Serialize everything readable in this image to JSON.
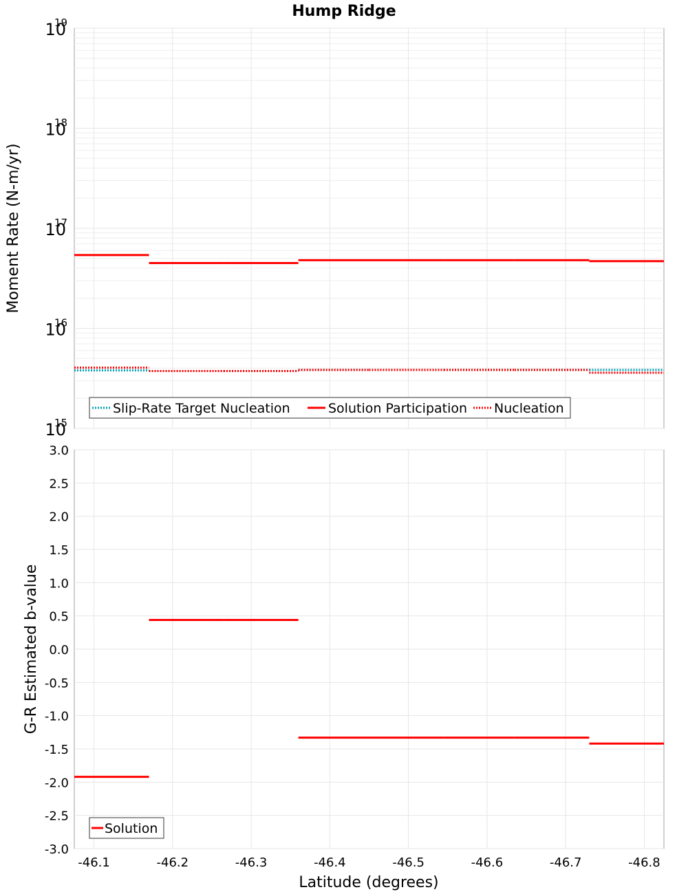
{
  "chart_data": {
    "title": "Hump Ridge",
    "x_axis": {
      "label": "Latitude (degrees)",
      "range": [
        -46.075,
        -46.825
      ],
      "ticks": [
        -46.1,
        -46.2,
        -46.3,
        -46.4,
        -46.5,
        -46.6,
        -46.7,
        -46.8
      ],
      "tick_labels": [
        "-46.1",
        "-46.2",
        "-46.3",
        "-46.4",
        "-46.5",
        "-46.6",
        "-46.7",
        "-46.8"
      ]
    },
    "panels": [
      {
        "type": "line",
        "scale": "log",
        "ylabel": "Moment Rate (N-m/yr)",
        "ylim": [
          1000000000000000.0,
          1e+19
        ],
        "y_ticks": [
          {
            "value": 1000000000000000.0,
            "base": "10",
            "exp": "15"
          },
          {
            "value": 1e+16,
            "base": "10",
            "exp": "16"
          },
          {
            "value": 1e+17,
            "base": "10",
            "exp": "17"
          },
          {
            "value": 1e+18,
            "base": "10",
            "exp": "18"
          },
          {
            "value": 1e+19,
            "base": "10",
            "exp": "19"
          }
        ],
        "legend_position": "bottom-left",
        "series": [
          {
            "name": "Slip-Rate Target Nucleation",
            "color": "#00a0b4",
            "style": "dotted",
            "segments": [
              {
                "x0": -46.075,
                "x1": -46.17,
                "y": 3800000000000000.0
              },
              {
                "x0": -46.17,
                "x1": -46.265,
                "y": 3750000000000000.0
              },
              {
                "x0": -46.265,
                "x1": -46.36,
                "y": 3750000000000000.0
              },
              {
                "x0": -46.36,
                "x1": -46.45,
                "y": 3850000000000000.0
              },
              {
                "x0": -46.45,
                "x1": -46.545,
                "y": 3850000000000000.0
              },
              {
                "x0": -46.545,
                "x1": -46.635,
                "y": 3850000000000000.0
              },
              {
                "x0": -46.635,
                "x1": -46.73,
                "y": 3850000000000000.0
              },
              {
                "x0": -46.73,
                "x1": -46.825,
                "y": 3850000000000000.0
              }
            ]
          },
          {
            "name": "Solution Participation",
            "color": "#ff0000",
            "style": "solid",
            "segments": [
              {
                "x0": -46.075,
                "x1": -46.17,
                "y": 5.4e+16
              },
              {
                "x0": -46.17,
                "x1": -46.265,
                "y": 4.5e+16
              },
              {
                "x0": -46.265,
                "x1": -46.36,
                "y": 4.5e+16
              },
              {
                "x0": -46.36,
                "x1": -46.45,
                "y": 4.8e+16
              },
              {
                "x0": -46.45,
                "x1": -46.545,
                "y": 4.8e+16
              },
              {
                "x0": -46.545,
                "x1": -46.635,
                "y": 4.8e+16
              },
              {
                "x0": -46.635,
                "x1": -46.73,
                "y": 4.8e+16
              },
              {
                "x0": -46.73,
                "x1": -46.825,
                "y": 4.7e+16
              }
            ]
          },
          {
            "name": "Nucleation",
            "color": "#ff0000",
            "style": "dotted",
            "segments": [
              {
                "x0": -46.075,
                "x1": -46.17,
                "y": 4050000000000000.0
              },
              {
                "x0": -46.17,
                "x1": -46.265,
                "y": 3750000000000000.0
              },
              {
                "x0": -46.265,
                "x1": -46.36,
                "y": 3750000000000000.0
              },
              {
                "x0": -46.36,
                "x1": -46.45,
                "y": 3850000000000000.0
              },
              {
                "x0": -46.45,
                "x1": -46.545,
                "y": 3850000000000000.0
              },
              {
                "x0": -46.545,
                "x1": -46.635,
                "y": 3850000000000000.0
              },
              {
                "x0": -46.635,
                "x1": -46.73,
                "y": 3850000000000000.0
              },
              {
                "x0": -46.73,
                "x1": -46.825,
                "y": 3600000000000000.0
              }
            ]
          }
        ]
      },
      {
        "type": "line",
        "scale": "linear",
        "ylabel": "G-R Estimated b-value",
        "ylim": [
          -3.0,
          3.0
        ],
        "y_ticks": [
          {
            "value": 3.0,
            "label": "3.0"
          },
          {
            "value": 2.5,
            "label": "2.5"
          },
          {
            "value": 2.0,
            "label": "2.0"
          },
          {
            "value": 1.5,
            "label": "1.5"
          },
          {
            "value": 1.0,
            "label": "1.0"
          },
          {
            "value": 0.5,
            "label": "0.5"
          },
          {
            "value": 0.0,
            "label": "0.0"
          },
          {
            "value": -0.5,
            "label": "-0.5"
          },
          {
            "value": -1.0,
            "label": "-1.0"
          },
          {
            "value": -1.5,
            "label": "-1.5"
          },
          {
            "value": -2.0,
            "label": "-2.0"
          },
          {
            "value": -2.5,
            "label": "-2.5"
          },
          {
            "value": -3.0,
            "label": "-3.0"
          }
        ],
        "legend_position": "bottom-left",
        "series": [
          {
            "name": "Solution",
            "color": "#ff0000",
            "style": "solid",
            "segments": [
              {
                "x0": -46.075,
                "x1": -46.17,
                "y": -1.92
              },
              {
                "x0": -46.17,
                "x1": -46.265,
                "y": 0.44
              },
              {
                "x0": -46.265,
                "x1": -46.36,
                "y": 0.44
              },
              {
                "x0": -46.36,
                "x1": -46.45,
                "y": -1.33
              },
              {
                "x0": -46.45,
                "x1": -46.545,
                "y": -1.33
              },
              {
                "x0": -46.545,
                "x1": -46.635,
                "y": -1.33
              },
              {
                "x0": -46.635,
                "x1": -46.73,
                "y": -1.33
              },
              {
                "x0": -46.73,
                "x1": -46.825,
                "y": -1.42
              }
            ]
          }
        ]
      }
    ]
  }
}
